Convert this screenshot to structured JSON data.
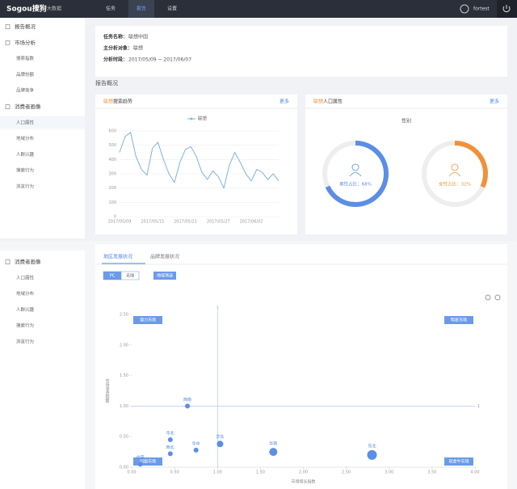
{
  "topbar": {
    "logo": "Sogou搜狗",
    "product": "大数据",
    "nav": [
      "任务",
      "报告",
      "设置"
    ],
    "active_nav": 1,
    "user": "fortest"
  },
  "sidebar": {
    "items": [
      {
        "label": "报告概况",
        "level": 1
      },
      {
        "label": "市场分析",
        "level": 1
      },
      {
        "label": "搜索指数",
        "level": 2
      },
      {
        "label": "品牌份额",
        "level": 2
      },
      {
        "label": "品牌竞争",
        "level": 2
      },
      {
        "label": "消费者画像",
        "level": 1
      },
      {
        "label": "人口属性",
        "level": 2
      },
      {
        "label": "地域分布",
        "level": 2
      },
      {
        "label": "人群兴趣",
        "level": 2
      },
      {
        "label": "搜索行为",
        "level": 2
      },
      {
        "label": "浏览行为",
        "level": 2
      }
    ]
  },
  "info": {
    "rows": [
      {
        "label": "任务名称：",
        "value": "联想中国"
      },
      {
        "label": "主分析对象：",
        "value": "联想"
      },
      {
        "label": "分析时段：",
        "value": "2017/05/09 ~ 2017/06/07"
      }
    ]
  },
  "section_title": "报告概况",
  "cards": [
    {
      "highlight": "联想",
      "title": "搜索趋势",
      "more": "更多"
    },
    {
      "highlight": "联想",
      "title": "人口属性",
      "more": "更多"
    }
  ],
  "sidebar2": {
    "items": [
      {
        "label": "消费者画像",
        "level": 1
      },
      {
        "label": "人口属性",
        "level": 2
      },
      {
        "label": "地域分布",
        "level": 2
      },
      {
        "label": "人群兴趣",
        "level": 2
      },
      {
        "label": "搜索行为",
        "level": 2
      },
      {
        "label": "浏览行为",
        "level": 2
      }
    ]
  },
  "tabs": [
    "地区发展状况",
    "品牌发展状况"
  ],
  "toggle": [
    "PC",
    "无线"
  ],
  "filter": "地域筛选",
  "chart_data": [
    {
      "type": "line",
      "categories": [
        "2017/05/09",
        null,
        null,
        null,
        null,
        null,
        "2017/05/15",
        null,
        null,
        null,
        null,
        null,
        "2017/05/21",
        null,
        null,
        null,
        null,
        null,
        "2017/05/27",
        null,
        null,
        null,
        null,
        null,
        "2017/06/02",
        null,
        null,
        null,
        null,
        null
      ],
      "series": [
        {
          "name": "联想",
          "color": "#7fb3d8",
          "values": [
            450,
            560,
            590,
            420,
            330,
            290,
            480,
            520,
            400,
            300,
            240,
            380,
            470,
            490,
            420,
            310,
            260,
            320,
            280,
            200,
            360,
            450,
            380,
            300,
            250,
            330,
            310,
            260,
            300,
            250
          ]
        }
      ],
      "ylim": [
        0,
        600
      ],
      "yticks": [
        0,
        100,
        200,
        300,
        400,
        500,
        600
      ],
      "grid": true
    },
    {
      "type": "donut",
      "title": "性别",
      "values": [
        68,
        32
      ],
      "value_labels": [
        "男性占比：68%",
        "女性占比：32%"
      ],
      "colors": [
        "#5b8ee6",
        "#f0913a"
      ]
    },
    {
      "type": "scatter",
      "color": "#5b8ee6",
      "x": [
        0.65,
        0.45,
        1.03,
        0.75,
        0.45,
        1.65,
        2.8,
        0.1
      ],
      "values": [
        1.0,
        0.45,
        0.38,
        0.28,
        0.22,
        0.25,
        0.2,
        0.05
      ],
      "sizes": [
        3,
        3,
        4,
        3,
        3,
        5,
        6,
        3
      ],
      "point_labels": [
        "西南",
        "华北",
        "华东",
        "华中",
        "西北",
        "华南",
        "东北",
        "中部"
      ],
      "quadrant_labels": [
        "潜力市场",
        "明星市场",
        "问题市场",
        "现金牛市场"
      ],
      "reference": {
        "x": 1,
        "y": 1
      },
      "xlabel": "市场增长指数",
      "ylabel": "市场渗透指数",
      "xlim": [
        0,
        4
      ],
      "xticks": [
        {
          "value": 0,
          "label": "0.00"
        },
        {
          "value": 0.5,
          "label": "0.50"
        },
        {
          "value": 1,
          "label": "1.00"
        },
        {
          "value": 1.5,
          "label": "1.50"
        },
        {
          "value": 2,
          "label": "2.00"
        },
        {
          "value": 2.5,
          "label": "2.50"
        },
        {
          "value": 3,
          "label": "3.00"
        },
        {
          "value": 3.5,
          "label": "3.50"
        },
        {
          "value": 4,
          "label": "4.00"
        }
      ],
      "ylim": [
        0,
        2.5
      ],
      "yticks": [
        {
          "value": 0,
          "label": "0.00"
        },
        {
          "value": 0.5,
          "label": "0.50"
        },
        {
          "value": 1,
          "label": "1.00"
        },
        {
          "value": 1.5,
          "label": "1.50"
        },
        {
          "value": 2,
          "label": "2.00"
        },
        {
          "value": 2.5,
          "label": "2.50"
        }
      ]
    }
  ]
}
